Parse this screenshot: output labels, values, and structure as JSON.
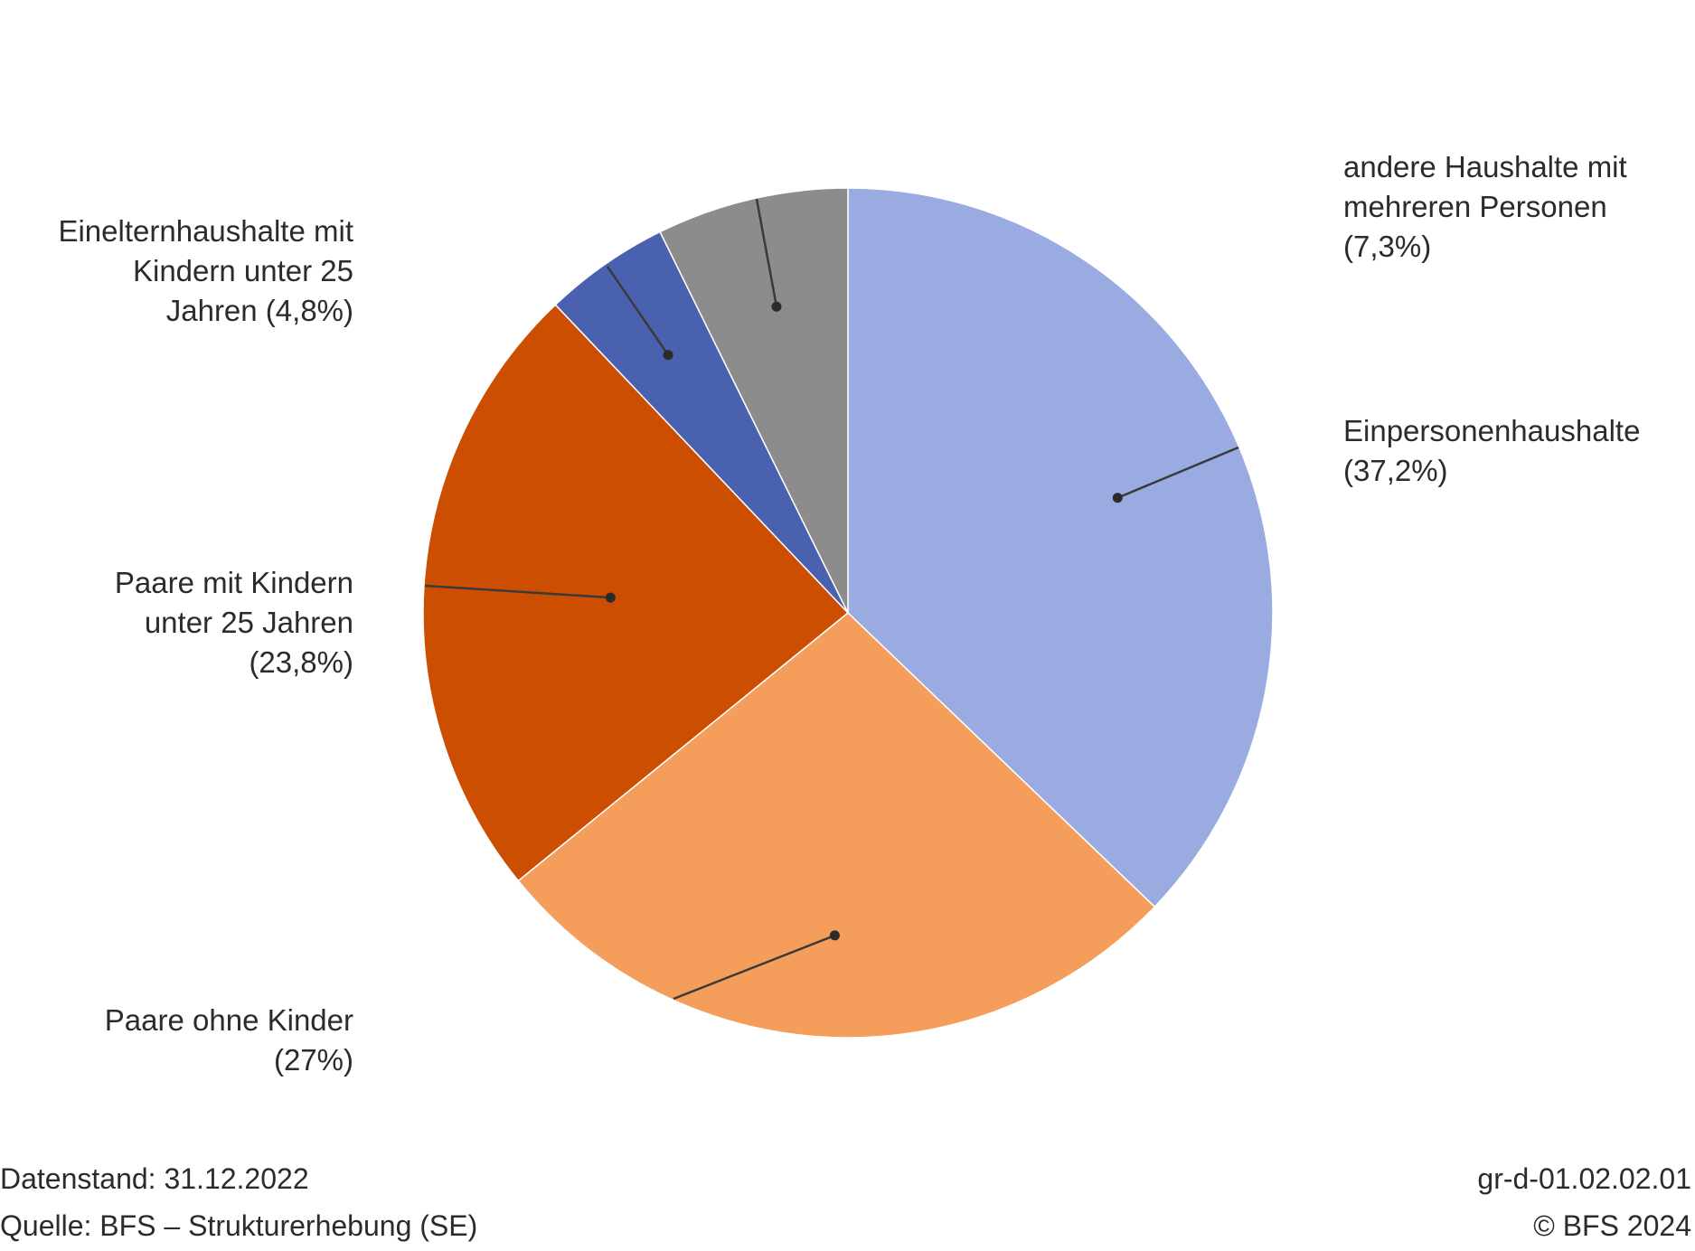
{
  "chart_data": {
    "type": "pie",
    "slices": [
      {
        "name": "Einpersonenhaushalte",
        "value": 37.2,
        "label": "Einpersonenhaushalte\n(37,2%)",
        "color": "#99abe0"
      },
      {
        "name": "Paare ohne Kinder",
        "value": 27.0,
        "label": "Paare ohne Kinder\n(27%)",
        "color": "#f59d5a"
      },
      {
        "name": "Paare mit Kindern unter 25 Jahren",
        "value": 23.8,
        "label": "Paare mit Kindern\nunter 25 Jahren\n(23,8%)",
        "color": "#cc4e00"
      },
      {
        "name": "Einelternhaushalte mit Kindern unter 25 Jahren",
        "value": 4.8,
        "label": "Einelternhaushalte mit\nKindern unter 25\nJahren (4,8%)",
        "color": "#4a61b0"
      },
      {
        "name": "andere Haushalte mit mehreren Personen",
        "value": 7.3,
        "label": "andere Haushalte mit\nmehreren Personen\n(7,3%)",
        "color": "#8c8c8c"
      }
    ],
    "legend": "none",
    "start": "top, clockwise"
  },
  "footer": {
    "date": "Datenstand: 31.12.2022",
    "source": "Quelle: BFS – Strukturerhebung (SE)",
    "code": "gr-d-01.02.02.01",
    "copyright": "© BFS 2024"
  }
}
